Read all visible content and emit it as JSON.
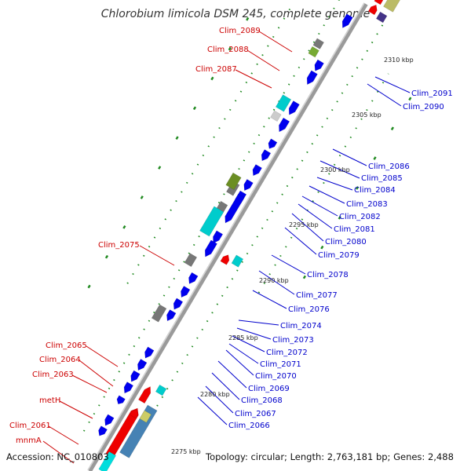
{
  "title": "Chlorobium limicola DSM 245, complete genome",
  "footer": {
    "accession": "Accession: NC_010803",
    "topology": "Topology: circular; Length: 2,763,181 bp; Genes: 2,488"
  },
  "colors": {
    "forward_label": "#cc0000",
    "reverse_label": "#0000cc",
    "backbone": "#999999",
    "tick": "#228b22"
  },
  "ticks": [
    "2275 kbp",
    "2280 kbp",
    "2285 kbp",
    "2290 kbp",
    "2295 kbp",
    "2300 kbp",
    "2305 kbp",
    "2310 kbp"
  ],
  "forward_labels": [
    "Clim_2089",
    "Clim_2088",
    "Clim_2087",
    "Clim_2075",
    "Clim_2065",
    "Clim_2064",
    "Clim_2063",
    "metH",
    "Clim_2061",
    "mnmA"
  ],
  "reverse_labels": [
    "Clim_2091",
    "Clim_2090",
    "Clim_2086",
    "Clim_2085",
    "Clim_2084",
    "Clim_2083",
    "Clim_2082",
    "Clim_2081",
    "Clim_2080",
    "Clim_2079",
    "Clim_2078",
    "Clim_2077",
    "Clim_2076",
    "Clim_2074",
    "Clim_2073",
    "Clim_2072",
    "Clim_2071",
    "Clim_2070",
    "Clim_2069",
    "Clim_2068",
    "Clim_2067",
    "Clim_2066"
  ]
}
